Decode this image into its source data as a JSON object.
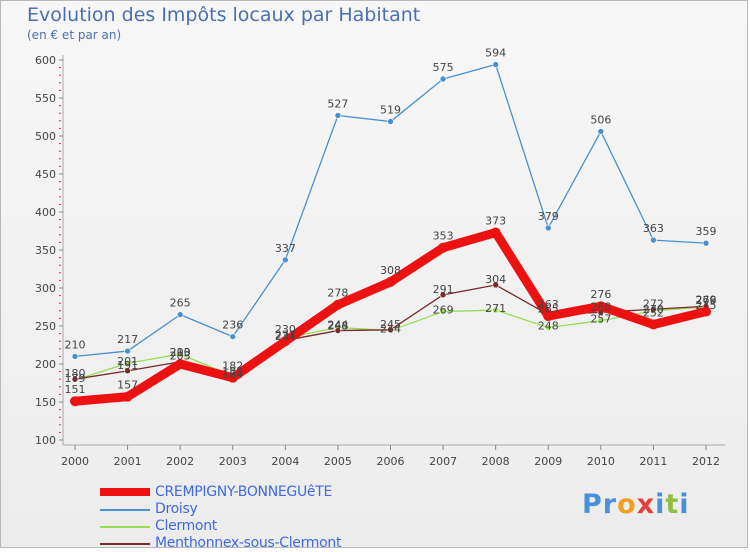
{
  "title": "Evolution des Impôts locaux par Habitant",
  "subtitle": "(en € et par an)",
  "logo": "Proxiti",
  "colors": {
    "crempigny": "#ee1111",
    "droisy": "#4a8fcf",
    "clermont": "#99dd55",
    "menthonnex": "#7a2a2a"
  },
  "chart_data": {
    "type": "line",
    "title": "Evolution des Impôts locaux par Habitant",
    "ylabel": "(en € et par an)",
    "xlabel": "",
    "x": [
      "2000",
      "2001",
      "2002",
      "2003",
      "2004",
      "2005",
      "2006",
      "2007",
      "2008",
      "2009",
      "2010",
      "2011",
      "2012"
    ],
    "ylim": [
      100,
      600
    ],
    "yticks": [
      100,
      150,
      200,
      250,
      300,
      350,
      400,
      450,
      500,
      550,
      600
    ],
    "grid": false,
    "legend": "bottom-left",
    "series": [
      {
        "name": "CREMPIGNY-BONNEGUêTE",
        "key": "crempigny",
        "values": [
          151,
          157,
          200,
          182,
          230,
          278,
          308,
          353,
          373,
          263,
          276,
          252,
          269
        ]
      },
      {
        "name": "Droisy",
        "key": "droisy",
        "values": [
          210,
          217,
          265,
          236,
          337,
          527,
          519,
          575,
          594,
          379,
          506,
          363,
          359
        ]
      },
      {
        "name": "Clermont",
        "key": "clermont",
        "values": [
          179,
          201,
          213,
          184,
          234,
          248,
          244,
          269,
          271,
          248,
          257,
          270,
          275
        ]
      },
      {
        "name": "Menthonnex-sous-Clermont",
        "key": "menthonnex",
        "values": [
          180,
          191,
          203,
          183,
          231,
          244,
          245,
          291,
          304,
          265,
          268,
          272,
          276
        ]
      }
    ]
  }
}
